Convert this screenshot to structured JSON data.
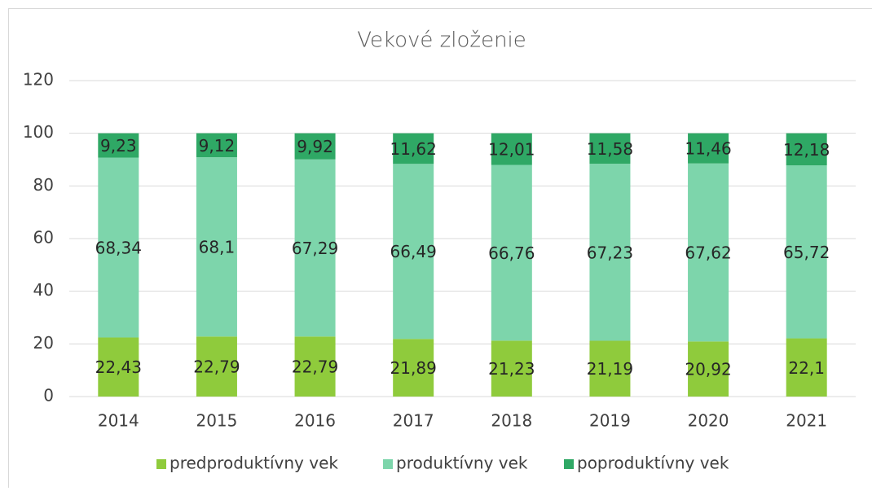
{
  "chart_data": {
    "type": "stacked_bar",
    "title": "Vekové zloženie",
    "categories": [
      "2014",
      "2015",
      "2016",
      "2017",
      "2018",
      "2019",
      "2020",
      "2021"
    ],
    "series": [
      {
        "name": "predproduktívny vek",
        "color": "#8fcb3c",
        "values": [
          22.43,
          22.79,
          22.79,
          21.89,
          21.23,
          21.19,
          20.92,
          22.1
        ],
        "value_labels": [
          "22,43",
          "22,79",
          "22,79",
          "21,89",
          "21,23",
          "21,19",
          "20,92",
          "22,1"
        ]
      },
      {
        "name": "produktívny vek",
        "color": "#7dd5ab",
        "values": [
          68.34,
          68.1,
          67.29,
          66.49,
          66.76,
          67.23,
          67.62,
          65.72
        ],
        "value_labels": [
          "68,34",
          "68,1",
          "67,29",
          "66,49",
          "66,76",
          "67,23",
          "67,62",
          "65,72"
        ]
      },
      {
        "name": "poproduktívny vek",
        "color": "#2fa865",
        "values": [
          9.23,
          9.12,
          9.92,
          11.62,
          12.01,
          11.58,
          11.46,
          12.18
        ],
        "value_labels": [
          "9,23",
          "9,12",
          "9,92",
          "11,62",
          "12,01",
          "11,58",
          "11,46",
          "12,18"
        ]
      }
    ],
    "ylim": [
      0,
      120
    ],
    "yticks": [
      0,
      20,
      40,
      60,
      80,
      100,
      120
    ],
    "grid": true,
    "legend": "bottom"
  }
}
